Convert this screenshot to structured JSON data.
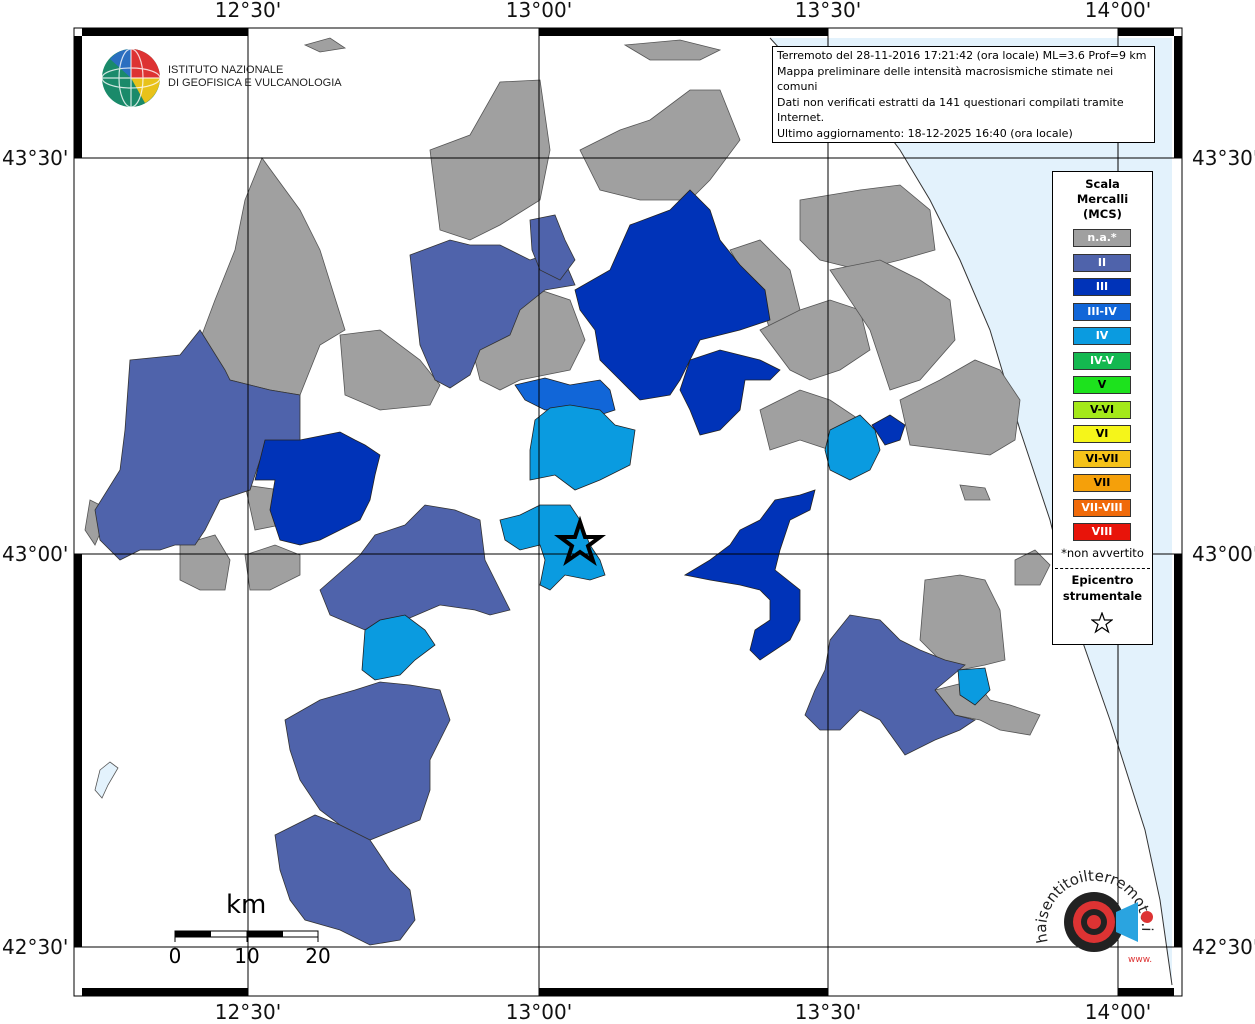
{
  "coords": {
    "top": [
      "12°30'",
      "13°00'",
      "13°30'",
      "14°00'"
    ],
    "bottom": [
      "12°30'",
      "13°00'",
      "13°30'",
      "14°00'"
    ],
    "left": [
      "43°30'",
      "43°00'",
      "42°30'"
    ],
    "right": [
      "43°30'",
      "43°00'",
      "42°30'"
    ]
  },
  "info": {
    "line1": "Terremoto del 28-11-2016 17:21:42 (ora locale) ML=3.6 Prof=9 km",
    "line2": "Mappa preliminare delle intensità macrosismiche stimate nei comuni",
    "line3": "Dati non verificati estratti da 141 questionari compilati tramite Internet.",
    "line4": "Ultimo aggiornamento: 18-12-2025 16:40 (ora locale)"
  },
  "logo": {
    "line1": "ISTITUTO NAZIONALE",
    "line2": "DI GEOFISICA E VULCANOLOGIA"
  },
  "legend": {
    "title1": "Scala",
    "title2": "Mercalli",
    "title3": "(MCS)",
    "items": [
      {
        "label": "n.a.*",
        "color": "#a0a0a0",
        "text": "#ffffff"
      },
      {
        "label": "II",
        "color": "#4f63ab",
        "text": "#ffffff"
      },
      {
        "label": "III",
        "color": "#0033b8",
        "text": "#ffffff"
      },
      {
        "label": "III-IV",
        "color": "#1166d8",
        "text": "#ffffff"
      },
      {
        "label": "IV",
        "color": "#0a9be0",
        "text": "#ffffff"
      },
      {
        "label": "IV-V",
        "color": "#14b850",
        "text": "#ffffff"
      },
      {
        "label": "V",
        "color": "#1de21d",
        "text": "#000000"
      },
      {
        "label": "V-VI",
        "color": "#a4e81a",
        "text": "#000000"
      },
      {
        "label": "VI",
        "color": "#f5f51a",
        "text": "#000000"
      },
      {
        "label": "VI-VII",
        "color": "#f5c21a",
        "text": "#000000"
      },
      {
        "label": "VII",
        "color": "#f5a00a",
        "text": "#000000"
      },
      {
        "label": "VII-VIII",
        "color": "#f06a0a",
        "text": "#ffffff"
      },
      {
        "label": "VIII",
        "color": "#e8140a",
        "text": "#ffffff"
      }
    ],
    "note": "*non avvertito",
    "epicentro1": "Epicentro",
    "epicentro2": "strumentale"
  },
  "scale": {
    "unit": "km",
    "ticks": [
      "0",
      "10",
      "20"
    ]
  },
  "hsit": {
    "brand": "haisentitoilterremoto.it",
    "url": "www."
  }
}
